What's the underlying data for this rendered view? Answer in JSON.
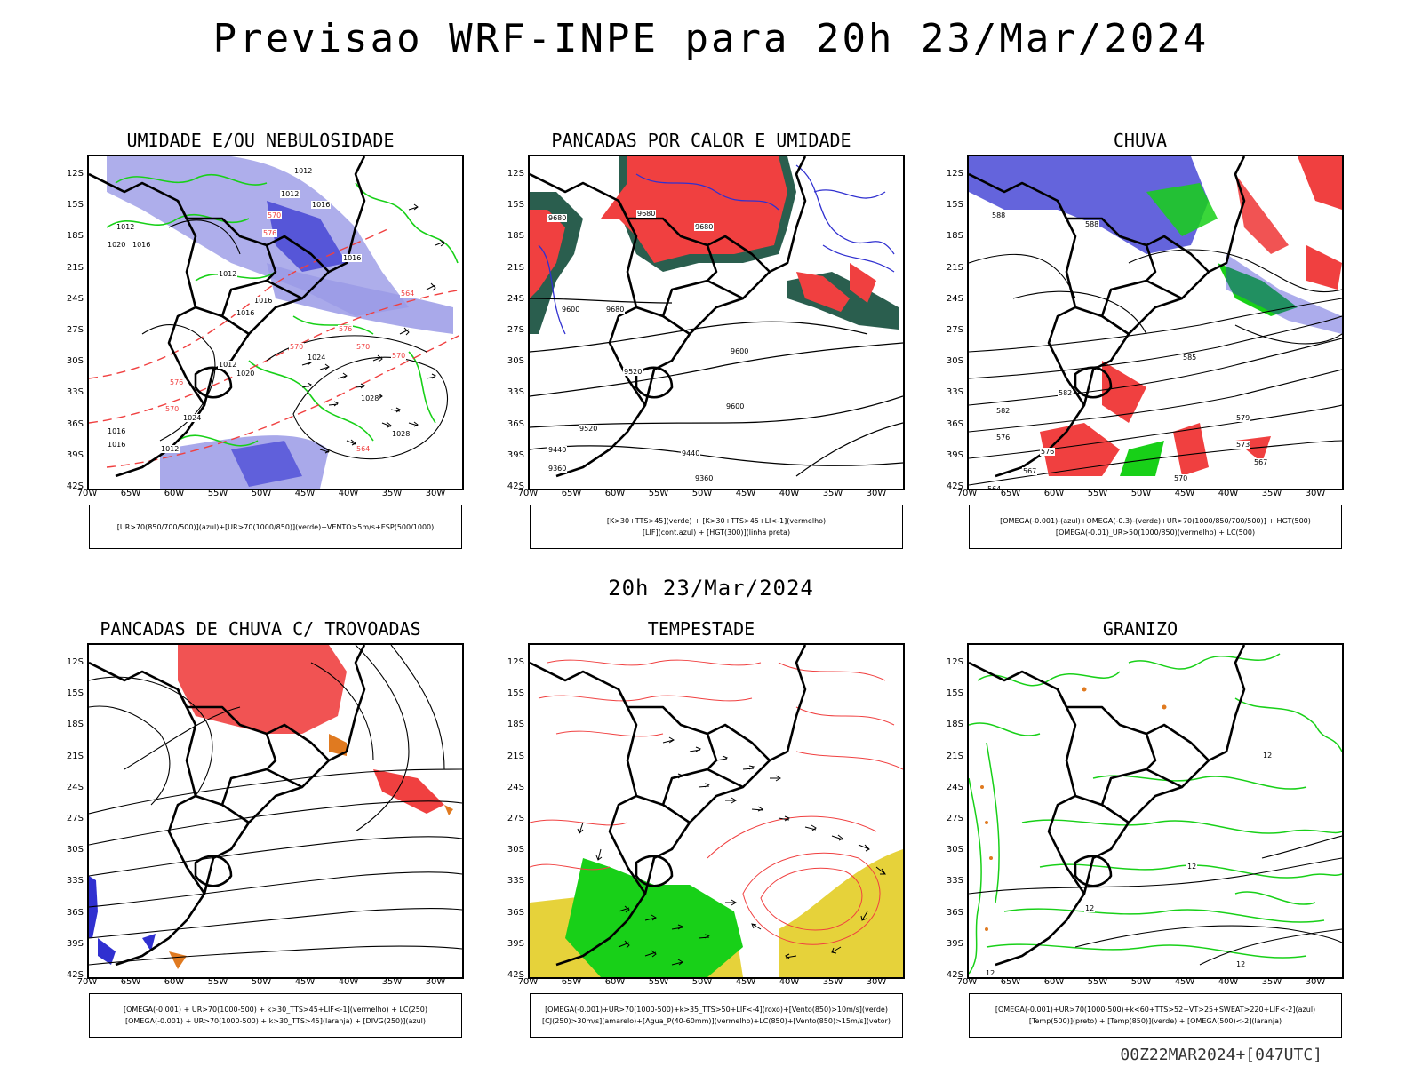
{
  "title": "Previsao WRF-INPE  para 20h 23/Mar/2024",
  "mid_date": "20h 23/Mar/2024",
  "footer": "00Z22MAR2024+[047UTC]",
  "latitude_labels": [
    "12S",
    "15S",
    "18S",
    "21S",
    "24S",
    "27S",
    "30S",
    "33S",
    "36S",
    "39S",
    "42S"
  ],
  "longitude_labels": [
    "70W",
    "65W",
    "60W",
    "55W",
    "50W",
    "45W",
    "40W",
    "35W",
    "30W"
  ],
  "panels": [
    {
      "title": "UMIDADE E/OU NEBULOSIDADE",
      "legend": [
        "[UR>70(850/700/500)](azul)+[UR>70(1000/850)](verde)+VENTO>5m/s+ESP(500/1000)"
      ],
      "contour_labels": [
        "1012",
        "1012",
        "1012",
        "1020",
        "1016",
        "1016",
        "1012",
        "1016",
        "1016",
        "1016",
        "1012",
        "1024",
        "1020",
        "1028",
        "1028",
        "1024",
        "1016",
        "1016",
        "1012",
        "576",
        "570",
        "576",
        "570",
        "570",
        "564",
        "564",
        "570",
        "570",
        "576"
      ]
    },
    {
      "title": "PANCADAS POR CALOR E UMIDADE",
      "legend": [
        "[K>30+TTS>45](verde) + [K>30+TTS>45+LI<-1](vermelho)",
        "[LIF](cont.azul) + [HGT(300)](linha preta)"
      ],
      "contour_labels": [
        "9680",
        "9680",
        "9680",
        "9600",
        "9680",
        "9600",
        "9520",
        "9600",
        "9520",
        "9440",
        "9440",
        "9360",
        "9360"
      ]
    },
    {
      "title": "CHUVA",
      "legend": [
        "[OMEGA(-0.001)-(azul)+OMEGA(-0.3)-(verde)+UR>70(1000/850/700/500)] + HGT(500)",
        "[OMEGA(-0.01)_UR>50(1000/850)(vermelho) + LC(500)"
      ],
      "contour_labels": [
        "588",
        "588",
        "585",
        "582",
        "582",
        "579",
        "576",
        "573",
        "576",
        "570",
        "567",
        "567",
        "564"
      ]
    },
    {
      "title": "PANCADAS DE CHUVA C/ TROVOADAS",
      "legend": [
        "[OMEGA(-0.001) + UR>70(1000-500) + k>30_TTS>45+LIF<-1](vermelho) + LC(250)",
        "[OMEGA(-0.001) + UR>70(1000-500) + k>30_TTS>45](laranja) + [DIVG(250)](azul)"
      ],
      "contour_labels": []
    },
    {
      "title": "TEMPESTADE",
      "legend": [
        "[OMEGA(-0.001)+UR>70(1000-500)+k>35_TTS>50+LIF<-4](roxo)+[Vento(850)>10m/s](verde)",
        "[CJ(250)>30m/s](amarelo)+[Agua_P(40-60mm)](vermelho)+LC(850)+[Vento(850)>15m/s](vetor)"
      ],
      "contour_labels": []
    },
    {
      "title": "GRANIZO",
      "legend": [
        "[OMEGA(-0.001)+UR>70(1000-500)+k<60+TTS>52+VT>25+SWEAT>220+LIF<-2](azul)",
        "[Temp(500)](preto) + [Temp(850)](verde) + [OMEGA(500)<-2](laranja)"
      ],
      "contour_labels": [
        "12",
        "12",
        "12",
        "12",
        "12"
      ]
    }
  ],
  "colors": {
    "blue_fill": "#9a9ae6",
    "blue_dark": "#3030d0",
    "green": "#18d018",
    "red": "#f04040",
    "darkgreen": "#2a5e4e",
    "yellow": "#e6d23a",
    "orange": "#e07a20",
    "black": "#000000"
  }
}
